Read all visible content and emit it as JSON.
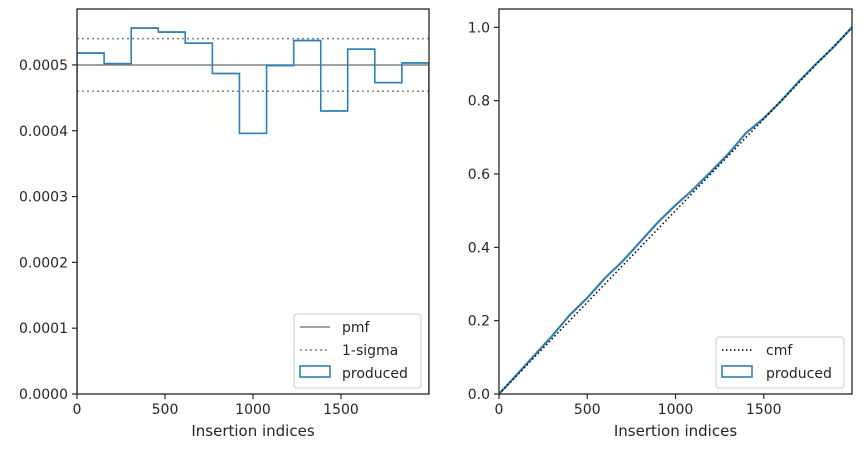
{
  "chart_data": [
    {
      "type": "histogram-step",
      "title": "",
      "xlabel": "Insertion indices",
      "ylabel": "",
      "xlim": [
        0,
        2000
      ],
      "ylim": [
        0,
        0.000585
      ],
      "xticks": [
        0,
        500,
        1000,
        1500
      ],
      "xtick_labels": [
        "0",
        "500",
        "1000",
        "1500"
      ],
      "yticks": [
        0,
        0.0001,
        0.0002,
        0.0003,
        0.0004,
        0.0005
      ],
      "ytick_labels": [
        "0.0000",
        "0.0001",
        "0.0002",
        "0.0003",
        "0.0004",
        "0.0005"
      ],
      "bin_edges": [
        0,
        154,
        308,
        462,
        615,
        769,
        923,
        1077,
        1231,
        1385,
        1538,
        1692,
        1846,
        2000
      ],
      "produced": [
        0.000518,
        0.000502,
        0.000556,
        0.00055,
        0.000533,
        0.000487,
        0.000396,
        0.000499,
        0.000537,
        0.00043,
        0.000524,
        0.000473,
        0.000503
      ],
      "pmf": 0.0005,
      "sigma_lines": [
        0.00054,
        0.00046
      ],
      "legend_position": "lower-right",
      "legend": [
        "pmf",
        "1-sigma",
        "produced"
      ],
      "colors": {
        "produced": "#2d82b7",
        "pmf": "#808080",
        "sigma": "#808080"
      }
    },
    {
      "type": "line",
      "title": "",
      "xlabel": "Insertion indices",
      "ylabel": "",
      "xlim": [
        0,
        2000
      ],
      "ylim": [
        0,
        1.05
      ],
      "xticks": [
        0,
        500,
        1000,
        1500
      ],
      "xtick_labels": [
        "0",
        "500",
        "1000",
        "1500"
      ],
      "yticks": [
        0,
        0.2,
        0.4,
        0.6,
        0.8,
        1.0
      ],
      "ytick_labels": [
        "0.0",
        "0.2",
        "0.4",
        "0.6",
        "0.8",
        "1.0"
      ],
      "cmf": {
        "x": [
          0,
          2000
        ],
        "y": [
          0,
          1
        ]
      },
      "produced": {
        "x": [
          0,
          100,
          200,
          300,
          400,
          500,
          600,
          700,
          800,
          900,
          1000,
          1100,
          1200,
          1300,
          1400,
          1500,
          1600,
          1700,
          1800,
          1900,
          2000
        ],
        "y": [
          0,
          0.052,
          0.105,
          0.158,
          0.215,
          0.262,
          0.316,
          0.362,
          0.415,
          0.468,
          0.515,
          0.558,
          0.606,
          0.655,
          0.712,
          0.752,
          0.8,
          0.853,
          0.902,
          0.948,
          1.0
        ]
      },
      "legend_position": "lower-right",
      "legend": [
        "cmf",
        "produced"
      ],
      "colors": {
        "produced": "#2d82b7",
        "cmf": "#000000"
      }
    }
  ]
}
